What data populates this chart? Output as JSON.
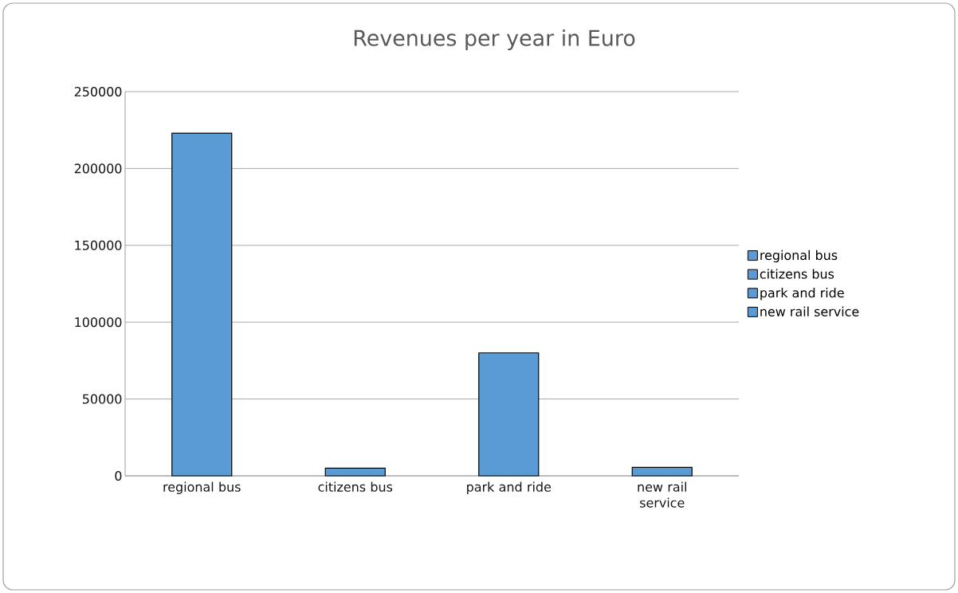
{
  "chart_data": {
    "type": "bar",
    "title": "Revenues per year in Euro",
    "categories": [
      "regional bus",
      "citizens bus",
      "park and ride",
      "new rail service"
    ],
    "series": [
      {
        "name": "regional bus",
        "color": "#5b9bd5",
        "values": [
          223000,
          null,
          null,
          null
        ]
      },
      {
        "name": "citizens bus",
        "color": "#5b9bd5",
        "values": [
          null,
          5000,
          null,
          null
        ]
      },
      {
        "name": "park and ride",
        "color": "#5b9bd5",
        "values": [
          null,
          null,
          80000,
          null
        ]
      },
      {
        "name": "new rail service",
        "color": "#5b9bd5",
        "values": [
          null,
          null,
          null,
          5500
        ]
      }
    ],
    "ylim": [
      0,
      250000
    ],
    "yticks": [
      0,
      50000,
      100000,
      150000,
      200000,
      250000
    ],
    "grid": "y",
    "legend": "right"
  }
}
